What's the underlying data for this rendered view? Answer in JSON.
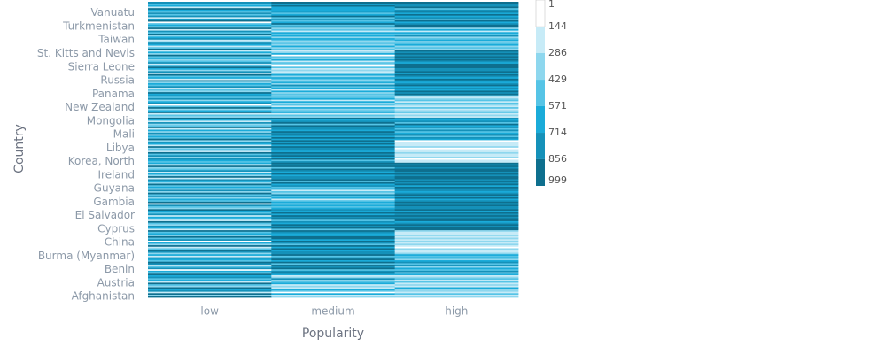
{
  "chart_data": {
    "type": "heatmap",
    "x_label": "Popularity",
    "y_label": "Country",
    "x_categories": [
      "low",
      "medium",
      "high"
    ],
    "categories": [
      "Afghanistan",
      null,
      null,
      null,
      null,
      null,
      null,
      null,
      null,
      "Austria",
      null,
      null,
      null,
      null,
      null,
      null,
      null,
      null,
      "Benin",
      null,
      null,
      null,
      null,
      null,
      null,
      null,
      null,
      "Burma (Myanmar)",
      null,
      null,
      null,
      null,
      null,
      null,
      null,
      null,
      "China",
      null,
      null,
      null,
      null,
      null,
      null,
      null,
      null,
      "Cyprus",
      null,
      null,
      null,
      null,
      null,
      null,
      null,
      null,
      "El Salvador",
      null,
      null,
      null,
      null,
      null,
      null,
      null,
      null,
      "Gambia",
      null,
      null,
      null,
      null,
      null,
      null,
      null,
      null,
      "Guyana",
      null,
      null,
      null,
      null,
      null,
      null,
      null,
      null,
      "Ireland",
      null,
      null,
      null,
      null,
      null,
      null,
      null,
      null,
      "Korea, North",
      null,
      null,
      null,
      null,
      null,
      null,
      null,
      null,
      "Libya",
      null,
      null,
      null,
      null,
      null,
      null,
      null,
      null,
      "Mali",
      null,
      null,
      null,
      null,
      null,
      null,
      null,
      null,
      "Mongolia",
      null,
      null,
      null,
      null,
      null,
      null,
      null,
      null,
      "New Zealand",
      null,
      null,
      null,
      null,
      null,
      null,
      null,
      null,
      "Panama",
      null,
      null,
      null,
      null,
      null,
      null,
      null,
      null,
      "Russia",
      null,
      null,
      null,
      null,
      null,
      null,
      null,
      null,
      "Sierra Leone",
      null,
      null,
      null,
      null,
      null,
      null,
      null,
      null,
      "St. Kitts and Nevis",
      null,
      null,
      null,
      null,
      null,
      null,
      null,
      null,
      "Taiwan",
      null,
      null,
      null,
      null,
      null,
      null,
      null,
      null,
      "Turkmenistan",
      null,
      null,
      null,
      null,
      null,
      null,
      null,
      null,
      "Vanuatu",
      null,
      null,
      null,
      null,
      null,
      null,
      null
    ],
    "z": [
      [
        880,
        420,
        910,
        150,
        760,
        630,
        990,
        310,
        540,
        870,
        220,
        700,
        460,
        830,
        590,
        940,
        380,
        660,
        120,
        810,
        500,
        270,
        730,
        960,
        440,
        610,
        850,
        180,
        690,
        350,
        720,
        900,
        560,
        240,
        980,
        410,
        640,
        130,
        790,
        520,
        870,
        300,
        610,
        450,
        930,
        200,
        680,
        840,
        370,
        570,
        950,
        260,
        490,
        710,
        160,
        820,
        430,
        600,
        880,
        340,
        530,
        760,
        110,
        920,
        480,
        650,
        290,
        840,
        570,
        990,
        380,
        720,
        210,
        610,
        470,
        860,
        330,
        590,
        740,
        190,
        910,
        420,
        680,
        250,
        800,
        550,
        370,
        960,
        140,
        700,
        480,
        620,
        850,
        300,
        770,
        510,
        930,
        230,
        660,
        410,
        880,
        170,
        590,
        740,
        320,
        950,
        460,
        700,
        180,
        830,
        390,
        610,
        270,
        940,
        520,
        360,
        790,
        150,
        640,
        880,
        410,
        560,
        230,
        870,
        690,
        340,
        980,
        500,
        140,
        760,
        630,
        290,
        850,
        470,
        720,
        600,
        910,
        380,
        520,
        260,
        810,
        450,
        700,
        330,
        970,
        190,
        650,
        540,
        870,
        240,
        780,
        310,
        640,
        920,
        470,
        150,
        830,
        560,
        290,
        710,
        440,
        990,
        380,
        620,
        170,
        890,
        530,
        270,
        680,
        810,
        400,
        160,
        750,
        580,
        320,
        940,
        460,
        720,
        210,
        860,
        350,
        700,
        480,
        130,
        900,
        610,
        270,
        840,
        520,
        760,
        390,
        580,
        930,
        250,
        670,
        520,
        810
      ],
      [
        320,
        210,
        580,
        130,
        460,
        700,
        250,
        390,
        180,
        620,
        540,
        290,
        820,
        410,
        160,
        690,
        930,
        810,
        470,
        880,
        720,
        990,
        560,
        860,
        640,
        910,
        780,
        530,
        950,
        740,
        840,
        670,
        970,
        600,
        880,
        510,
        760,
        920,
        630,
        870,
        990,
        700,
        590,
        830,
        940,
        560,
        890,
        720,
        980,
        650,
        810,
        540,
        920,
        760,
        870,
        610,
        990,
        700,
        840,
        580,
        470,
        620,
        350,
        710,
        530,
        280,
        660,
        490,
        820,
        390,
        570,
        230,
        680,
        450,
        760,
        630,
        880,
        540,
        970,
        720,
        850,
        610,
        930,
        690,
        780,
        990,
        570,
        860,
        740,
        910,
        820,
        560,
        940,
        680,
        870,
        720,
        990,
        610,
        840,
        760,
        930,
        590,
        880,
        670,
        950,
        700,
        910,
        640,
        860,
        780,
        990,
        620,
        850,
        730,
        940,
        560,
        890,
        810,
        670,
        920,
        380,
        550,
        240,
        670,
        450,
        310,
        620,
        190,
        520,
        410,
        700,
        280,
        590,
        460,
        340,
        520,
        390,
        680,
        240,
        590,
        450,
        770,
        330,
        610,
        180,
        540,
        700,
        420,
        640,
        290,
        160,
        410,
        280,
        530,
        120,
        370,
        450,
        220,
        590,
        310,
        480,
        140,
        650,
        360,
        240,
        500,
        340,
        620,
        410,
        560,
        180,
        470,
        690,
        290,
        580,
        430,
        610,
        250,
        530,
        380,
        740,
        520,
        880,
        610,
        430,
        790,
        560,
        920,
        680,
        470,
        850,
        630,
        710,
        580,
        900,
        600,
        880
      ],
      [
        350,
        240,
        510,
        160,
        420,
        290,
        610,
        180,
        390,
        270,
        470,
        200,
        560,
        330,
        150,
        680,
        420,
        790,
        530,
        610,
        380,
        720,
        460,
        840,
        590,
        370,
        700,
        490,
        650,
        410,
        280,
        190,
        350,
        130,
        260,
        410,
        170,
        310,
        220,
        380,
        150,
        290,
        240,
        200,
        330,
        860,
        920,
        780,
        990,
        840,
        710,
        950,
        880,
        760,
        930,
        820,
        970,
        690,
        900,
        850,
        720,
        860,
        640,
        930,
        780,
        590,
        890,
        700,
        960,
        810,
        660,
        850,
        740,
        910,
        620,
        920,
        780,
        990,
        840,
        870,
        950,
        730,
        900,
        810,
        980,
        860,
        760,
        940,
        830,
        890,
        170,
        260,
        120,
        330,
        210,
        150,
        290,
        190,
        240,
        110,
        310,
        180,
        270,
        220,
        140,
        610,
        750,
        520,
        880,
        690,
        430,
        810,
        570,
        740,
        640,
        900,
        500,
        780,
        660,
        830,
        240,
        410,
        180,
        570,
        320,
        260,
        490,
        150,
        380,
        440,
        210,
        530,
        300,
        170,
        460,
        880,
        720,
        960,
        640,
        810,
        590,
        930,
        770,
        690,
        850,
        980,
        620,
        740,
        910,
        700,
        910,
        830,
        760,
        990,
        870,
        940,
        700,
        850,
        960,
        780,
        890,
        820,
        930,
        750,
        980,
        410,
        560,
        330,
        690,
        470,
        280,
        620,
        510,
        360,
        740,
        440,
        590,
        230,
        650,
        380,
        950,
        870,
        780,
        620,
        910,
        530,
        840,
        700,
        990,
        660,
        880,
        740,
        560,
        920,
        810,
        730,
        940
      ]
    ],
    "zlim": [
      1,
      999
    ],
    "zticks": [
      1,
      144,
      286,
      429,
      571,
      714,
      856,
      999
    ],
    "colors": [
      "#ffffff",
      "#c7ebf7",
      "#8ed7ee",
      "#56c4e6",
      "#1aabd9",
      "#1591b9",
      "#0e6f8e"
    ]
  }
}
